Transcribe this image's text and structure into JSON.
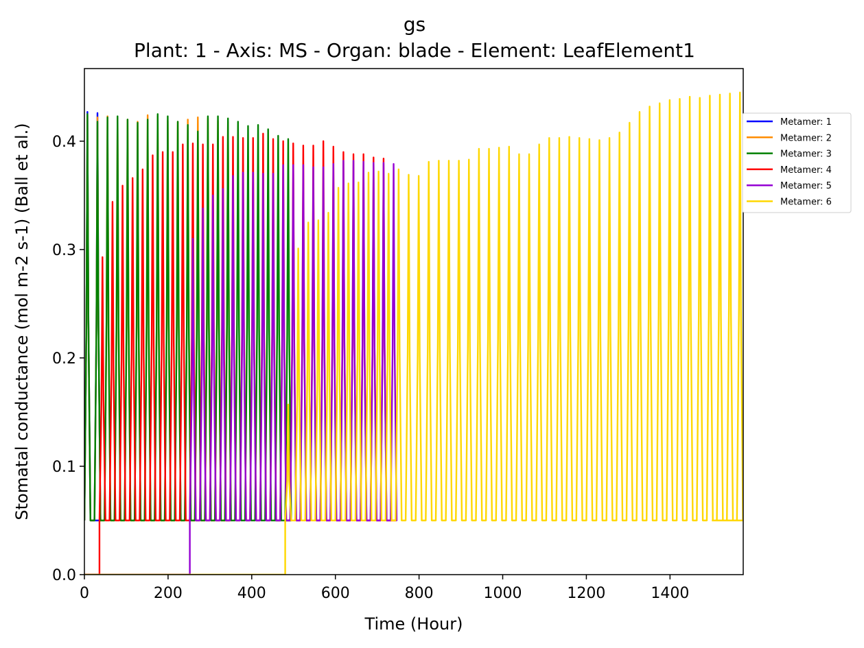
{
  "chart_data": {
    "type": "line",
    "title": "gs",
    "subtitle": "Plant: 1 - Axis: MS - Organ: blade - Element: LeafElement1",
    "xlabel": "Time (Hour)",
    "ylabel": "Stomatal conductance (mol m-2 s-1) (Ball et al.)",
    "xlim": [
      0,
      1575
    ],
    "ylim": [
      0,
      0.467
    ],
    "xticks": [
      "0",
      "200",
      "400",
      "600",
      "800",
      "1000",
      "1200",
      "1400"
    ],
    "yticks": [
      "0.0",
      "0.1",
      "0.2",
      "0.3",
      "0.4"
    ],
    "grid": false,
    "legend_position": "upper-right-outside",
    "period_hours": 24,
    "night_value": 0.05,
    "series": [
      {
        "name": "Metamer: 1",
        "color": "#0000ff",
        "start": 0,
        "end": 24,
        "peaks": [
          0.427,
          0.426
        ]
      },
      {
        "name": "Metamer: 2",
        "color": "#ff8c00",
        "start": 0,
        "end": 336,
        "peaks": [
          0.424,
          0.422,
          0.423,
          0.421,
          0.42,
          0.418,
          0.424,
          0.423,
          0.419,
          0.418,
          0.42,
          0.422,
          0.421,
          0.419,
          0.418
        ]
      },
      {
        "name": "Metamer: 3",
        "color": "#008000",
        "start": 0,
        "end": 456,
        "peaks": [
          0.425,
          0.418,
          0.422,
          0.423,
          0.42,
          0.417,
          0.42,
          0.425,
          0.423,
          0.418,
          0.415,
          0.409,
          0.423,
          0.423,
          0.421,
          0.418,
          0.414,
          0.415,
          0.411,
          0.405,
          0.402
        ]
      },
      {
        "name": "Metamer: 4",
        "color": "#ff0000",
        "start": 36,
        "end": 744,
        "peaks": [
          0.293,
          0.344,
          0.359,
          0.366,
          0.374,
          0.387,
          0.39,
          0.39,
          0.397,
          0.398,
          0.397,
          0.397,
          0.404,
          0.404,
          0.403,
          0.403,
          0.407,
          0.402,
          0.4,
          0.398,
          0.396,
          0.396,
          0.4,
          0.395,
          0.39,
          0.388,
          0.388,
          0.385,
          0.384
        ]
      },
      {
        "name": "Metamer: 5",
        "color": "#9400d3",
        "start": 252,
        "end": 744,
        "peaks": [
          0.31,
          0.338,
          0.35,
          0.356,
          0.368,
          0.371,
          0.371,
          0.37,
          0.37,
          0.378,
          0.378,
          0.378,
          0.376,
          0.376,
          0.379,
          0.382,
          0.382,
          0.381,
          0.38,
          0.38,
          0.379
        ]
      },
      {
        "name": "Metamer: 6",
        "color": "#ffd700",
        "start": 480,
        "end": 1500,
        "peaks": [
          0.157,
          0.301,
          0.325,
          0.327,
          0.334,
          0.357,
          0.361,
          0.362,
          0.371,
          0.372,
          0.37,
          0.374,
          0.369,
          0.368,
          0.381,
          0.382,
          0.382,
          0.382,
          0.383,
          0.393,
          0.393,
          0.394,
          0.395,
          0.388,
          0.388,
          0.397,
          0.403,
          0.403,
          0.404,
          0.403,
          0.402,
          0.401,
          0.403,
          0.408,
          0.417,
          0.427,
          0.432,
          0.435,
          0.438,
          0.439,
          0.441,
          0.44,
          0.442,
          0.443,
          0.444,
          0.445,
          0.442
        ]
      }
    ]
  }
}
